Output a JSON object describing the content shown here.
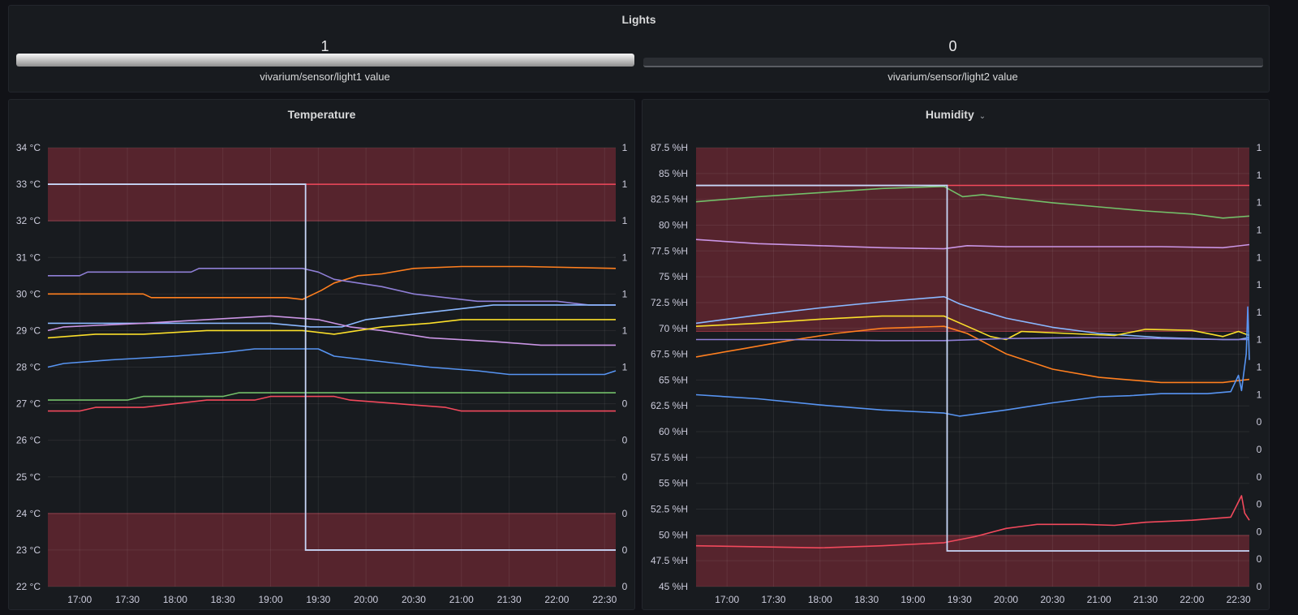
{
  "lights": {
    "title": "Lights",
    "gauges": [
      {
        "value": "1",
        "label": "vivarium/sensor/light1 value",
        "fraction": 1
      },
      {
        "value": "0",
        "label": "vivarium/sensor/light2 value",
        "fraction": 0
      }
    ]
  },
  "colors": {
    "background": "#111217",
    "panel": "#181b1f",
    "threshold_fill": "#5a252e",
    "threshold_line": "#f2495c",
    "green": "#73bf69",
    "purple": "#8f7fd6",
    "orange": "#ff7f1f",
    "light_blue": "#8ab8ff",
    "pink_purple": "#ca95e5",
    "yellow": "#fade2a",
    "blue": "#5794f2",
    "red": "#f2495c",
    "light_line": "#c8d6f7"
  },
  "chart_data": [
    {
      "type": "line",
      "title": "Temperature",
      "y_ticks": [
        "34 °C",
        "33 °C",
        "32 °C",
        "31 °C",
        "30 °C",
        "29 °C",
        "28 °C",
        "27 °C",
        "26 °C",
        "25 °C",
        "24 °C",
        "23 °C",
        "22 °C"
      ],
      "right_ticks": [
        "1",
        "1",
        "1",
        "1",
        "1",
        "1",
        "1",
        "0",
        "0",
        "0",
        "0",
        "0",
        "0"
      ],
      "x_ticks": [
        "17:00",
        "17:30",
        "18:00",
        "18:30",
        "19:00",
        "19:30",
        "20:00",
        "20:30",
        "21:00",
        "21:30",
        "22:00",
        "22:30"
      ],
      "ylim": [
        22,
        34
      ],
      "xlim_minutes": [
        1000,
        1357
      ],
      "thresholds": {
        "high": 32,
        "low": 24,
        "critical_line": 33
      },
      "light_series": {
        "before": 1,
        "after": 0,
        "switch_time": "19:22"
      },
      "series": [
        {
          "color": "orange",
          "points": [
            [
              1000,
              30
            ],
            [
              1060,
              30
            ],
            [
              1065,
              29.9
            ],
            [
              1150,
              29.9
            ],
            [
              1160,
              29.85
            ],
            [
              1172,
              30.1
            ],
            [
              1180,
              30.3
            ],
            [
              1195,
              30.5
            ],
            [
              1210,
              30.55
            ],
            [
              1230,
              30.7
            ],
            [
              1260,
              30.75
            ],
            [
              1290,
              30.75
            ],
            [
              1300,
              30.75
            ],
            [
              1357,
              30.7
            ]
          ]
        },
        {
          "color": "purple",
          "points": [
            [
              1000,
              30.5
            ],
            [
              1020,
              30.5
            ],
            [
              1025,
              30.6
            ],
            [
              1090,
              30.6
            ],
            [
              1095,
              30.7
            ],
            [
              1160,
              30.7
            ],
            [
              1170,
              30.6
            ],
            [
              1180,
              30.4
            ],
            [
              1195,
              30.3
            ],
            [
              1210,
              30.2
            ],
            [
              1230,
              30
            ],
            [
              1250,
              29.9
            ],
            [
              1270,
              29.8
            ],
            [
              1320,
              29.8
            ],
            [
              1340,
              29.7
            ],
            [
              1357,
              29.7
            ]
          ]
        },
        {
          "color": "light_blue",
          "points": [
            [
              1000,
              29.2
            ],
            [
              1080,
              29.2
            ],
            [
              1110,
              29.2
            ],
            [
              1140,
              29.2
            ],
            [
              1165,
              29.1
            ],
            [
              1185,
              29.1
            ],
            [
              1200,
              29.3
            ],
            [
              1230,
              29.45
            ],
            [
              1260,
              29.6
            ],
            [
              1280,
              29.7
            ],
            [
              1357,
              29.7
            ]
          ]
        },
        {
          "color": "pink_purple",
          "points": [
            [
              1000,
              29
            ],
            [
              1010,
              29.1
            ],
            [
              1060,
              29.2
            ],
            [
              1100,
              29.3
            ],
            [
              1140,
              29.4
            ],
            [
              1170,
              29.3
            ],
            [
              1190,
              29.1
            ],
            [
              1210,
              29
            ],
            [
              1240,
              28.8
            ],
            [
              1280,
              28.7
            ],
            [
              1310,
              28.6
            ],
            [
              1357,
              28.6
            ]
          ]
        },
        {
          "color": "yellow",
          "points": [
            [
              1000,
              28.8
            ],
            [
              1030,
              28.9
            ],
            [
              1060,
              28.9
            ],
            [
              1100,
              29
            ],
            [
              1160,
              29
            ],
            [
              1180,
              28.9
            ],
            [
              1195,
              29
            ],
            [
              1210,
              29.1
            ],
            [
              1240,
              29.2
            ],
            [
              1260,
              29.3
            ],
            [
              1357,
              29.3
            ]
          ]
        },
        {
          "color": "blue",
          "points": [
            [
              1000,
              28
            ],
            [
              1010,
              28.1
            ],
            [
              1040,
              28.2
            ],
            [
              1080,
              28.3
            ],
            [
              1110,
              28.4
            ],
            [
              1130,
              28.5
            ],
            [
              1170,
              28.5
            ],
            [
              1180,
              28.3
            ],
            [
              1200,
              28.2
            ],
            [
              1220,
              28.1
            ],
            [
              1240,
              28
            ],
            [
              1270,
              27.9
            ],
            [
              1290,
              27.8
            ],
            [
              1350,
              27.8
            ],
            [
              1357,
              27.9
            ]
          ]
        },
        {
          "color": "green",
          "points": [
            [
              1000,
              27.1
            ],
            [
              1050,
              27.1
            ],
            [
              1060,
              27.2
            ],
            [
              1110,
              27.2
            ],
            [
              1120,
              27.3
            ],
            [
              1357,
              27.3
            ]
          ]
        },
        {
          "color": "red",
          "points": [
            [
              1000,
              26.8
            ],
            [
              1020,
              26.8
            ],
            [
              1030,
              26.9
            ],
            [
              1060,
              26.9
            ],
            [
              1080,
              27
            ],
            [
              1100,
              27.1
            ],
            [
              1130,
              27.1
            ],
            [
              1140,
              27.2
            ],
            [
              1180,
              27.2
            ],
            [
              1190,
              27.1
            ],
            [
              1220,
              27
            ],
            [
              1250,
              26.9
            ],
            [
              1260,
              26.8
            ],
            [
              1357,
              26.8
            ]
          ]
        }
      ]
    },
    {
      "type": "line",
      "title": "Humidity",
      "y_ticks": [
        "87.5 %H",
        "85 %H",
        "82.5 %H",
        "80 %H",
        "77.5 %H",
        "75 %H",
        "72.5 %H",
        "70 %H",
        "67.5 %H",
        "65 %H",
        "62.5 %H",
        "60 %H",
        "57.5 %H",
        "55 %H",
        "52.5 %H",
        "50 %H",
        "47.5 %H",
        "45 %H"
      ],
      "right_ticks": [
        "1",
        "1",
        "1",
        "1",
        "1",
        "1",
        "1",
        "1",
        "1",
        "1",
        "0",
        "0",
        "0",
        "0",
        "0",
        "0",
        "0"
      ],
      "x_ticks": [
        "17:00",
        "17:30",
        "18:00",
        "18:30",
        "19:00",
        "19:30",
        "20:00",
        "20:30",
        "21:00",
        "21:30",
        "22:00",
        "22:30"
      ],
      "ylim": [
        45,
        88
      ],
      "xlim_minutes": [
        1000,
        1357
      ],
      "thresholds": {
        "high": 70,
        "low": 50,
        "critical_line": 84.3
      },
      "light_series": {
        "before": 1,
        "after": 0,
        "switch_time": "19:22"
      },
      "series": [
        {
          "color": "green",
          "points": [
            [
              1000,
              82.7
            ],
            [
              1040,
              83.2
            ],
            [
              1080,
              83.6
            ],
            [
              1120,
              84
            ],
            [
              1160,
              84.2
            ],
            [
              1172,
              83.2
            ],
            [
              1185,
              83.4
            ],
            [
              1200,
              83.1
            ],
            [
              1230,
              82.6
            ],
            [
              1260,
              82.2
            ],
            [
              1290,
              81.8
            ],
            [
              1320,
              81.5
            ],
            [
              1340,
              81.1
            ],
            [
              1357,
              81.3
            ]
          ]
        },
        {
          "color": "pink_purple",
          "points": [
            [
              1000,
              79
            ],
            [
              1040,
              78.6
            ],
            [
              1080,
              78.4
            ],
            [
              1120,
              78.2
            ],
            [
              1160,
              78.1
            ],
            [
              1175,
              78.4
            ],
            [
              1200,
              78.3
            ],
            [
              1250,
              78.3
            ],
            [
              1300,
              78.3
            ],
            [
              1340,
              78.2
            ],
            [
              1357,
              78.5
            ]
          ]
        },
        {
          "color": "light_blue",
          "points": [
            [
              1000,
              70.8
            ],
            [
              1040,
              71.6
            ],
            [
              1080,
              72.3
            ],
            [
              1120,
              72.9
            ],
            [
              1160,
              73.4
            ],
            [
              1170,
              72.7
            ],
            [
              1180,
              72.2
            ],
            [
              1200,
              71.3
            ],
            [
              1230,
              70.4
            ],
            [
              1260,
              69.8
            ],
            [
              1300,
              69.4
            ],
            [
              1340,
              69.2
            ],
            [
              1350,
              69.2
            ],
            [
              1357,
              69.4
            ]
          ]
        },
        {
          "color": "yellow",
          "points": [
            [
              1000,
              70.5
            ],
            [
              1040,
              70.8
            ],
            [
              1080,
              71.2
            ],
            [
              1120,
              71.5
            ],
            [
              1160,
              71.5
            ],
            [
              1175,
              70.5
            ],
            [
              1190,
              69.5
            ],
            [
              1200,
              69.2
            ],
            [
              1210,
              70
            ],
            [
              1240,
              69.8
            ],
            [
              1270,
              69.6
            ],
            [
              1290,
              70.2
            ],
            [
              1320,
              70.1
            ],
            [
              1340,
              69.5
            ],
            [
              1350,
              70
            ],
            [
              1357,
              69.6
            ]
          ]
        },
        {
          "color": "orange",
          "points": [
            [
              1000,
              67.5
            ],
            [
              1030,
              68.3
            ],
            [
              1060,
              69.1
            ],
            [
              1090,
              69.8
            ],
            [
              1120,
              70.3
            ],
            [
              1160,
              70.5
            ],
            [
              1175,
              69.8
            ],
            [
              1200,
              67.8
            ],
            [
              1230,
              66.3
            ],
            [
              1260,
              65.5
            ],
            [
              1300,
              65
            ],
            [
              1340,
              65
            ],
            [
              1357,
              65.3
            ]
          ]
        },
        {
          "color": "purple",
          "points": [
            [
              1000,
              69.2
            ],
            [
              1060,
              69.2
            ],
            [
              1120,
              69.1
            ],
            [
              1160,
              69.1
            ],
            [
              1200,
              69.3
            ],
            [
              1250,
              69.4
            ],
            [
              1300,
              69.3
            ],
            [
              1340,
              69.2
            ],
            [
              1357,
              69.2
            ]
          ]
        },
        {
          "color": "blue",
          "points": [
            [
              1000,
              63.8
            ],
            [
              1040,
              63.4
            ],
            [
              1080,
              62.8
            ],
            [
              1120,
              62.3
            ],
            [
              1160,
              62
            ],
            [
              1170,
              61.7
            ],
            [
              1200,
              62.3
            ],
            [
              1230,
              63
            ],
            [
              1260,
              63.6
            ],
            [
              1280,
              63.7
            ],
            [
              1300,
              63.9
            ],
            [
              1330,
              63.9
            ],
            [
              1345,
              64.1
            ],
            [
              1350,
              65.7
            ],
            [
              1352,
              64.2
            ],
            [
              1355,
              67.8
            ],
            [
              1356,
              72.4
            ],
            [
              1357,
              67.2
            ]
          ]
        },
        {
          "color": "red",
          "points": [
            [
              1000,
              49
            ],
            [
              1040,
              48.9
            ],
            [
              1080,
              48.8
            ],
            [
              1120,
              49
            ],
            [
              1160,
              49.3
            ],
            [
              1180,
              49.9
            ],
            [
              1200,
              50.7
            ],
            [
              1220,
              51.1
            ],
            [
              1250,
              51.1
            ],
            [
              1270,
              51
            ],
            [
              1290,
              51.3
            ],
            [
              1320,
              51.5
            ],
            [
              1345,
              51.8
            ],
            [
              1352,
              53.9
            ],
            [
              1354,
              52.2
            ],
            [
              1357,
              51.5
            ]
          ]
        }
      ]
    }
  ]
}
